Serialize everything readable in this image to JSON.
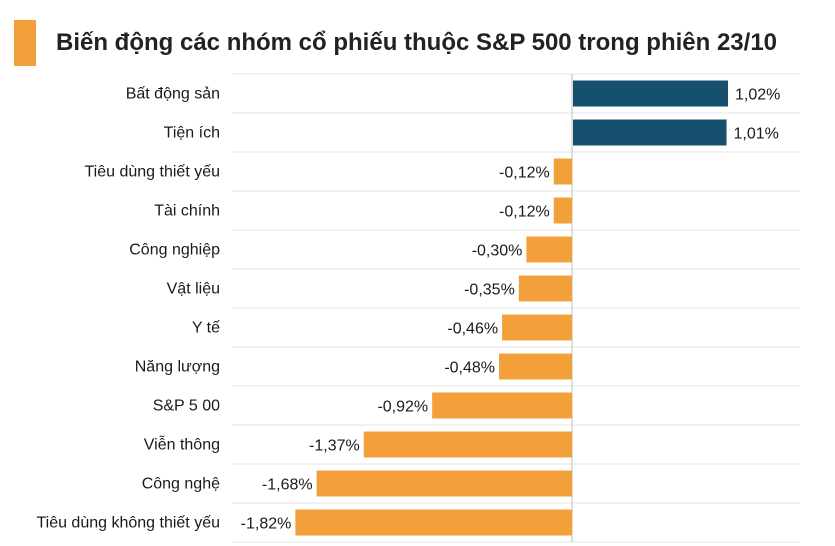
{
  "colors": {
    "positive": "#174f6e",
    "negative": "#f4a03a",
    "title_mark": "#f4a03a",
    "grid": "#e3e3e3",
    "zero_line": "#bdbdbd"
  },
  "chart_data": {
    "type": "bar",
    "orientation": "horizontal",
    "title": "Biến động các nhóm cổ phiếu thuộc S&P 500 trong phiên 23/10",
    "xlabel": "",
    "ylabel": "",
    "unit": "%",
    "grid": true,
    "categories": [
      "Bất động sản",
      "Tiện ích",
      "Tiêu dùng thiết yếu",
      "Tài chính",
      "Công nghiệp",
      "Vật liệu",
      "Y tế",
      "Năng lượng",
      "S&P 5 00",
      "Viễn thông",
      "Công nghệ",
      "Tiêu dùng không thiết yếu"
    ],
    "values": [
      1.02,
      1.01,
      -0.12,
      -0.12,
      -0.3,
      -0.35,
      -0.46,
      -0.48,
      -0.92,
      -1.37,
      -1.68,
      -1.82
    ],
    "value_labels": [
      "1,02%",
      "1,01%",
      "-0,12%",
      "-0,12%",
      "-0,30%",
      "-0,35%",
      "-0,46%",
      "-0,48%",
      "-0,92%",
      "-1,37%",
      "-1,68%",
      "-1,82%"
    ]
  }
}
